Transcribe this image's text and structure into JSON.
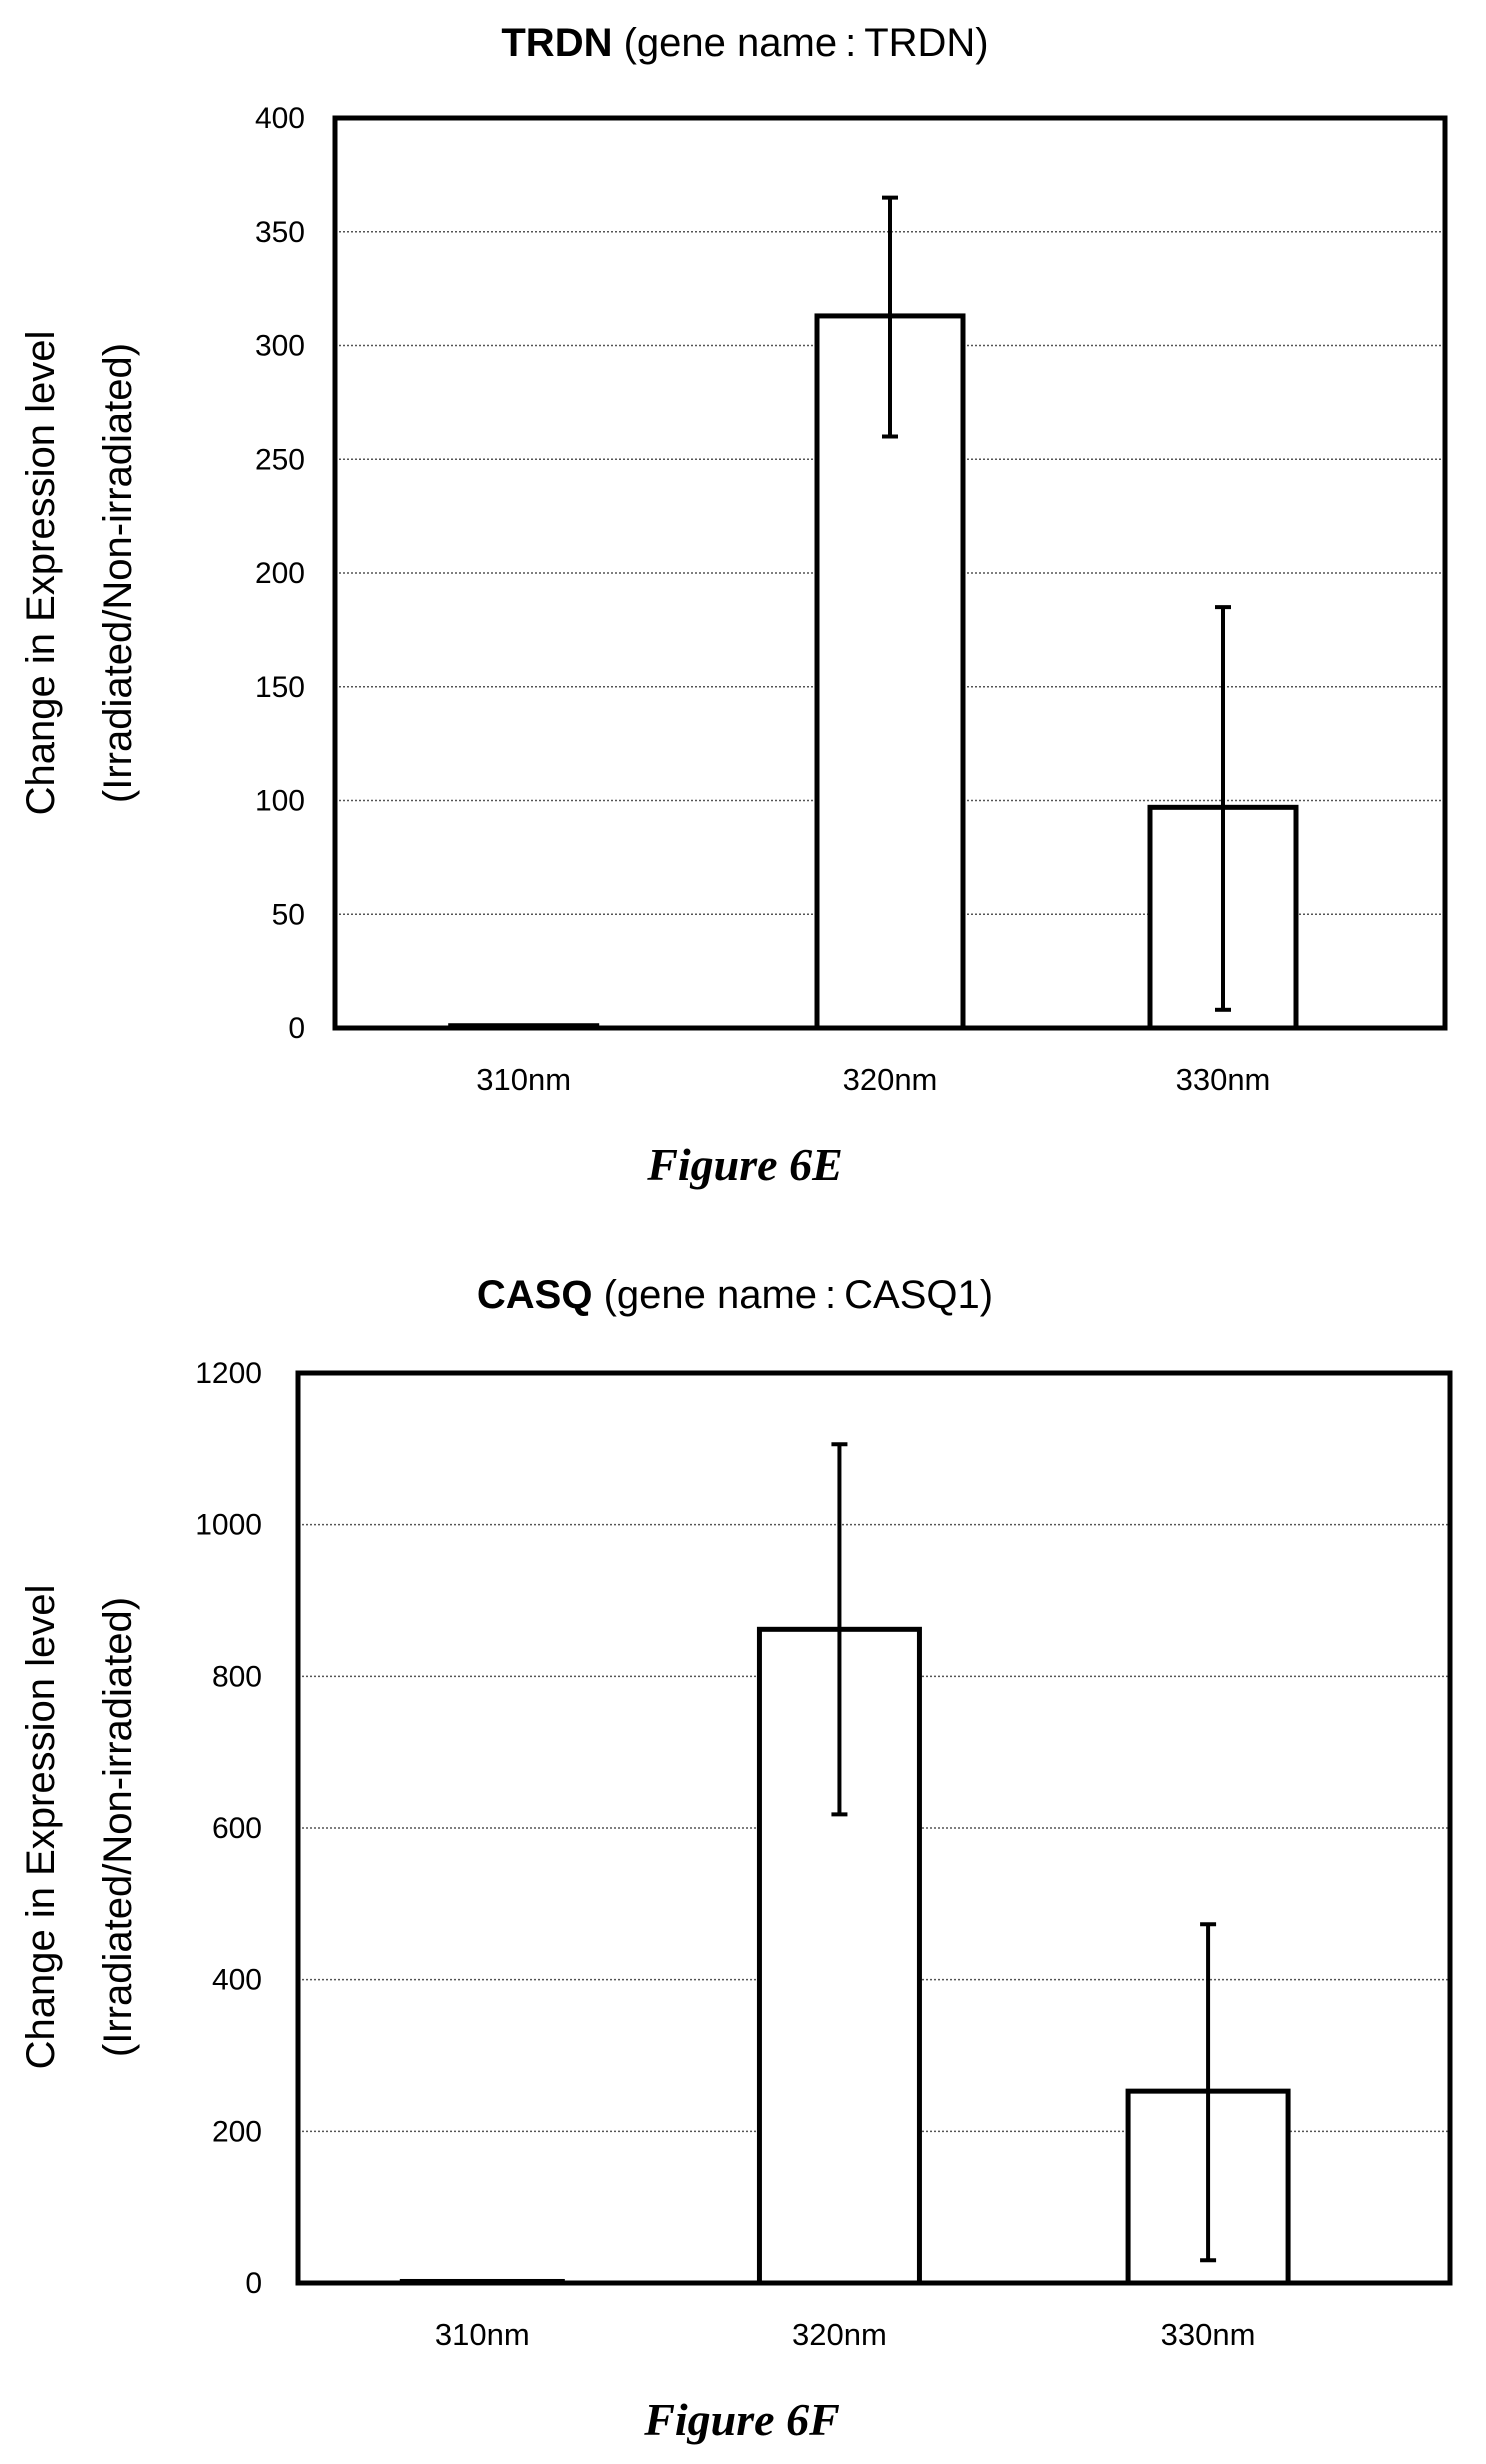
{
  "chart_data": [
    {
      "type": "bar",
      "title_bold": "TRDN",
      "title_rest": " (gene name : TRDN)",
      "ylabel_line1": "Change in Expression level",
      "ylabel_line2": "(Irradiated/Non-irradiated)",
      "caption": "Figure 6E",
      "categories": [
        "310nm",
        "320nm",
        "330nm"
      ],
      "values": [
        1,
        313,
        97
      ],
      "error_low": [
        1,
        260,
        8
      ],
      "error_high": [
        1,
        365,
        185
      ],
      "ylim": [
        0,
        400
      ],
      "yticks": [
        "0",
        "50",
        "100",
        "150",
        "200",
        "250",
        "300",
        "350",
        "400"
      ],
      "grid": true,
      "legend": "none"
    },
    {
      "type": "bar",
      "title_bold": "CASQ",
      "title_rest": " (gene name : CASQ1)",
      "ylabel_line1": "Change in Expression level",
      "ylabel_line2": "(Irradiated/Non-irradiated)",
      "caption": "Figure 6F",
      "categories": [
        "310nm",
        "320nm",
        "330nm"
      ],
      "values": [
        2,
        862,
        253
      ],
      "error_low": [
        2,
        618,
        30
      ],
      "error_high": [
        2,
        1106,
        473
      ],
      "ylim": [
        0,
        1200
      ],
      "yticks": [
        "0",
        "200",
        "400",
        "600",
        "800",
        "1000",
        "1200"
      ],
      "grid": true,
      "legend": "none"
    }
  ]
}
